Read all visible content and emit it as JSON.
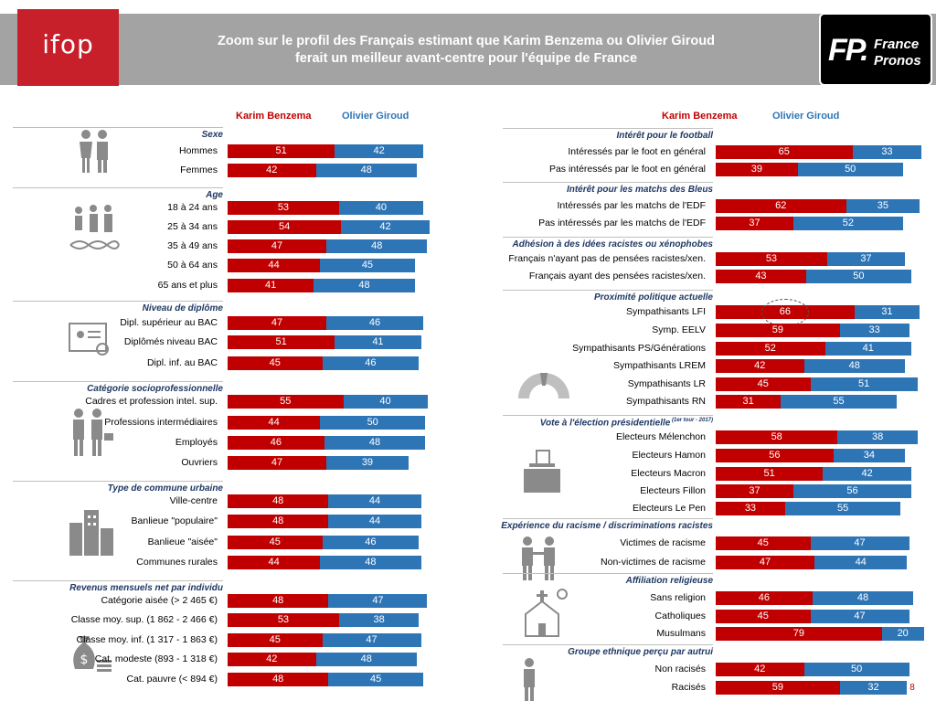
{
  "header": {
    "logo_left": "ifop",
    "title_line1": "Zoom sur le profil des Français estimant que Karim Benzema ou Olivier Giroud",
    "title_line2": "ferait un meilleur avant-centre pour l'équipe de France",
    "logo_right_mark": "FP.",
    "logo_right_word1": "France",
    "logo_right_word2": "Pronos"
  },
  "colors": {
    "benzema": "#c00000",
    "giroud": "#2e75b6",
    "section": "#1f3864",
    "banner": "#a3a3a3",
    "ifop": "#c8202a"
  },
  "chart_data": [
    {
      "type": "bar",
      "stacked": true,
      "orientation": "horizontal",
      "series_names": [
        "Karim Benzema",
        "Olivier Giroud"
      ],
      "groups": [
        {
          "title": "Sexe",
          "icon": "man-woman-icon",
          "rows": [
            {
              "label": "Hommes",
              "benzema": 51,
              "giroud": 42
            },
            {
              "label": "Femmes",
              "benzema": 42,
              "giroud": 48
            }
          ]
        },
        {
          "title": "Age",
          "icon": "family-dna-icon",
          "rows": [
            {
              "label": "18 à 24 ans",
              "benzema": 53,
              "giroud": 40
            },
            {
              "label": "25 à 34 ans",
              "benzema": 54,
              "giroud": 42
            },
            {
              "label": "35 à 49 ans",
              "benzema": 47,
              "giroud": 48
            },
            {
              "label": "50 à 64 ans",
              "benzema": 44,
              "giroud": 45
            },
            {
              "label": "65 ans et plus",
              "benzema": 41,
              "giroud": 48
            }
          ]
        },
        {
          "title": "Niveau de diplôme",
          "icon": "diploma-icon",
          "rows": [
            {
              "label": "Dipl. supérieur au BAC",
              "benzema": 47,
              "giroud": 46
            },
            {
              "label": "Diplômés niveau BAC",
              "benzema": 51,
              "giroud": 41
            },
            {
              "label": "Dipl. inf. au BAC",
              "benzema": 45,
              "giroud": 46
            }
          ]
        },
        {
          "title": "Catégorie socioprofessionnelle",
          "icon": "workers-icon",
          "rows": [
            {
              "label": "Cadres et profession intel. sup.",
              "benzema": 55,
              "giroud": 40
            },
            {
              "label": "Professions intermédiaires",
              "benzema": 44,
              "giroud": 50
            },
            {
              "label": "Employés",
              "benzema": 46,
              "giroud": 48
            },
            {
              "label": "Ouvriers",
              "benzema": 47,
              "giroud": 39
            }
          ]
        },
        {
          "title": "Type de commune urbaine",
          "icon": "buildings-icon",
          "rows": [
            {
              "label": "Ville-centre",
              "benzema": 48,
              "giroud": 44
            },
            {
              "label": "Banlieue \"populaire\"",
              "benzema": 48,
              "giroud": 44
            },
            {
              "label": "Banlieue \"aisée\"",
              "benzema": 45,
              "giroud": 46
            },
            {
              "label": "Communes rurales",
              "benzema": 44,
              "giroud": 48
            }
          ]
        },
        {
          "title": "Revenus mensuels net par individu",
          "icon": "money-bag-icon",
          "rows": [
            {
              "label": "Catégorie aisée (> 2 465 €)",
              "benzema": 48,
              "giroud": 47
            },
            {
              "label": "Classe moy. sup. (1 862 - 2 466 €)",
              "benzema": 53,
              "giroud": 38
            },
            {
              "label": "Classe moy. inf. (1 317 - 1 863 €)",
              "benzema": 45,
              "giroud": 47
            },
            {
              "label": "Cat. modeste (893 - 1 318 €)",
              "benzema": 42,
              "giroud": 48
            },
            {
              "label": "Cat. pauvre (< 894 €)",
              "benzema": 48,
              "giroud": 45
            }
          ]
        }
      ]
    },
    {
      "type": "bar",
      "stacked": true,
      "orientation": "horizontal",
      "series_names": [
        "Karim Benzema",
        "Olivier Giroud"
      ],
      "groups": [
        {
          "title": "Intérêt pour le football",
          "icon": "",
          "rows": [
            {
              "label": "Intéressés par le foot en général",
              "benzema": 65,
              "giroud": 33
            },
            {
              "label": "Pas intéressés par le foot en général",
              "benzema": 39,
              "giroud": 50
            }
          ]
        },
        {
          "title": "Intérêt pour les matchs des Bleus",
          "icon": "",
          "rows": [
            {
              "label": "Intéressés par les matchs de l'EDF",
              "benzema": 62,
              "giroud": 35
            },
            {
              "label": "Pas intéressés par les matchs de l'EDF",
              "benzema": 37,
              "giroud": 52
            }
          ]
        },
        {
          "title": "Adhésion à des idées racistes ou xénophobes",
          "icon": "",
          "rows": [
            {
              "label": "Français n'ayant pas de pensées racistes/xen.",
              "benzema": 53,
              "giroud": 37
            },
            {
              "label": "Français ayant des pensées racistes/xen.",
              "benzema": 43,
              "giroud": 50
            }
          ]
        },
        {
          "title": "Proximité politique actuelle",
          "icon": "hemicycle-icon",
          "rows": [
            {
              "label": "Sympathisants LFI",
              "benzema": 66,
              "giroud": 31,
              "highlight": true
            },
            {
              "label": "Symp.  EELV",
              "benzema": 59,
              "giroud": 33
            },
            {
              "label": "Sympathisants PS/Générations",
              "benzema": 52,
              "giroud": 41
            },
            {
              "label": "Sympathisants LREM",
              "benzema": 42,
              "giroud": 48
            },
            {
              "label": "Sympathisants LR",
              "benzema": 45,
              "giroud": 51
            },
            {
              "label": "Sympathisants RN",
              "benzema": 31,
              "giroud": 55
            }
          ]
        },
        {
          "title": "Vote à l'élection présidentielle",
          "title_note": "(1er tour - 2017)",
          "icon": "ballot-box-icon",
          "rows": [
            {
              "label": "Electeurs Mélenchon",
              "benzema": 58,
              "giroud": 38
            },
            {
              "label": "Electeurs Hamon",
              "benzema": 56,
              "giroud": 34
            },
            {
              "label": "Electeurs Macron",
              "benzema": 51,
              "giroud": 42
            },
            {
              "label": "Electeurs Fillon",
              "benzema": 37,
              "giroud": 56
            },
            {
              "label": "Electeurs Le Pen",
              "benzema": 33,
              "giroud": 55
            }
          ]
        },
        {
          "title": "Expérience du racisme / discriminations racistes",
          "icon": "people-pointing-icon",
          "rows": [
            {
              "label": "Victimes de racisme",
              "benzema": 45,
              "giroud": 47
            },
            {
              "label": "Non-victimes de racisme",
              "benzema": 47,
              "giroud": 44
            }
          ]
        },
        {
          "title": "Affiliation religieuse",
          "icon": "church-icon",
          "rows": [
            {
              "label": "Sans religion",
              "benzema": 46,
              "giroud": 48
            },
            {
              "label": "Catholiques",
              "benzema": 45,
              "giroud": 47
            },
            {
              "label": "Musulmans",
              "benzema": 79,
              "giroud": 20
            }
          ]
        },
        {
          "title": "Groupe ethnique perçu par autrui",
          "icon": "person-icon",
          "rows": [
            {
              "label": "Non racisés",
              "benzema": 42,
              "giroud": 50
            },
            {
              "label": "Racisés",
              "benzema": 59,
              "giroud": 32,
              "rest_label": "8"
            }
          ]
        }
      ]
    }
  ]
}
